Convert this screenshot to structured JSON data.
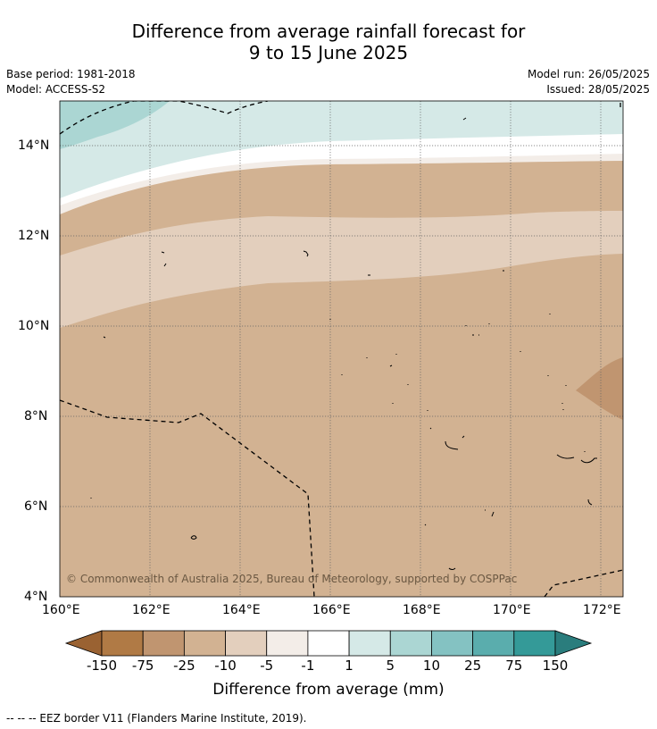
{
  "title_line1": "Difference from average rainfall forecast for",
  "title_line2": "9 to 15 June 2025",
  "base_period": "Base period: 1981-2018",
  "model": "Model: ACCESS-S2",
  "model_run": "Model run: 26/05/2025",
  "issued": "Issued: 28/05/2025",
  "copyright": "© Commonwealth of Australia 2025, Bureau of Meteorology, supported by COSPPac",
  "lat_labels": [
    "14°N",
    "12°N",
    "10°N",
    "8°N",
    "6°N",
    "4°N"
  ],
  "lon_labels": [
    "160°E",
    "162°E",
    "164°E",
    "166°E",
    "168°E",
    "170°E",
    "172°E"
  ],
  "colorbar": {
    "ticks": [
      "-150",
      "-75",
      "-25",
      "-10",
      "-5",
      "-1",
      "1",
      "5",
      "10",
      "25",
      "75",
      "150"
    ],
    "colors": [
      "#9a6232",
      "#b07a45",
      "#c09570",
      "#d2b292",
      "#e3cfbd",
      "#f3ede8",
      "#ffffff",
      "#d5e9e7",
      "#abd6d3",
      "#84c2c2",
      "#5aadad",
      "#349a98",
      "#2a7d7d"
    ],
    "title": "Difference from average (mm)"
  },
  "footer": "--  --  -- EEZ border V11 (Flanders Marine Institute, 2019)."
}
